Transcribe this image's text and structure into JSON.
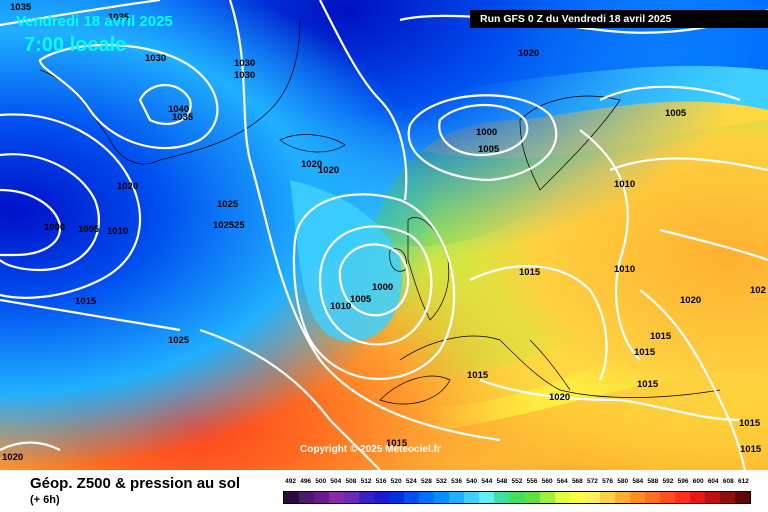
{
  "header": {
    "date_text": "Vendredi 18 avril 2025",
    "time_text": "7:00 locale",
    "run_text": "Run GFS 0 Z du Vendredi 18 avril 2025"
  },
  "footer": {
    "copyright": "Copyright © 2025 Meteociel.fr",
    "product_title": "Géop. Z500 & pression au sol",
    "product_subtitle": "(+ 6h)"
  },
  "color_scale": {
    "labels": [
      "492",
      "496",
      "500",
      "504",
      "508",
      "512",
      "516",
      "520",
      "524",
      "528",
      "532",
      "536",
      "540",
      "544",
      "548",
      "552",
      "556",
      "560",
      "564",
      "568",
      "572",
      "576",
      "580",
      "584",
      "588",
      "592",
      "596",
      "600",
      "604",
      "608",
      "612"
    ],
    "colors": [
      "#2b0a3d",
      "#4a1a6b",
      "#6a1a8f",
      "#8a2aa8",
      "#6a2ab8",
      "#3a20c0",
      "#1a1ad0",
      "#0030e0",
      "#0050f0",
      "#0070ff",
      "#0090ff",
      "#20b0ff",
      "#40d0ff",
      "#60f0f0",
      "#40e0a0",
      "#40e060",
      "#60e040",
      "#a0f040",
      "#e0ff40",
      "#ffff40",
      "#fff060",
      "#ffd040",
      "#ffb030",
      "#ff9020",
      "#ff7020",
      "#ff5020",
      "#ff3020",
      "#e81818",
      "#c01010",
      "#901010",
      "#600808"
    ]
  },
  "isobars": [
    {
      "id": "iso-1035a",
      "label": "1035"
    },
    {
      "id": "iso-1035b",
      "label": "1035"
    },
    {
      "id": "iso-1030a",
      "label": "1030"
    },
    {
      "id": "iso-1030b",
      "label": "1030"
    },
    {
      "id": "iso-1030c",
      "label": "1030"
    },
    {
      "id": "iso-1040",
      "label": "1040"
    },
    {
      "id": "iso-1035c",
      "label": "1035"
    },
    {
      "id": "iso-1020a",
      "label": "1020"
    },
    {
      "id": "iso-1020b",
      "label": "1020"
    },
    {
      "id": "iso-1020c",
      "label": "1020"
    },
    {
      "id": "iso-1020d",
      "label": "1020"
    },
    {
      "id": "iso-1025a",
      "label": "1025"
    },
    {
      "id": "iso-102525",
      "label": "102525"
    },
    {
      "id": "iso-1000a",
      "label": "1000"
    },
    {
      "id": "iso-1005a",
      "label": "1005"
    },
    {
      "id": "iso-1010a",
      "label": "1010"
    },
    {
      "id": "iso-1000b",
      "label": "1000"
    },
    {
      "id": "iso-1005b",
      "label": "1005"
    },
    {
      "id": "iso-1005c",
      "label": "1005"
    },
    {
      "id": "iso-1010b",
      "label": "1010"
    },
    {
      "id": "iso-1010c",
      "label": "1010"
    },
    {
      "id": "iso-1000c",
      "label": "1000"
    },
    {
      "id": "iso-1005d",
      "label": "1005"
    },
    {
      "id": "iso-1010d",
      "label": "1010"
    },
    {
      "id": "iso-1015a",
      "label": "1015"
    },
    {
      "id": "iso-1015b",
      "label": "1015"
    },
    {
      "id": "iso-1015c",
      "label": "1015"
    },
    {
      "id": "iso-1015d",
      "label": "1015"
    },
    {
      "id": "iso-1015e",
      "label": "1015"
    },
    {
      "id": "iso-1015f",
      "label": "1015"
    },
    {
      "id": "iso-1015g",
      "label": "1015"
    },
    {
      "id": "iso-1015h",
      "label": "1015"
    },
    {
      "id": "iso-1015i",
      "label": "1015"
    },
    {
      "id": "iso-1025b",
      "label": "1025"
    },
    {
      "id": "iso-1020e",
      "label": "1020"
    },
    {
      "id": "iso-1020f",
      "label": "1020"
    },
    {
      "id": "iso-102",
      "label": "102"
    },
    {
      "id": "iso-1020g",
      "label": "1020"
    }
  ]
}
